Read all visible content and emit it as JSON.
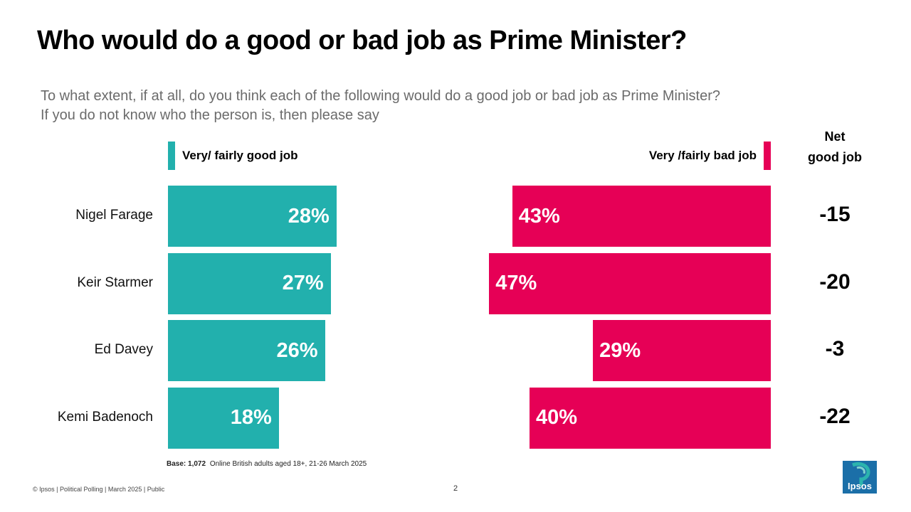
{
  "title": "Who would do a good or bad job as Prime Minister?",
  "subtitle_line1": "To what extent, if at all, do you think each of the following would do a good job or bad job as Prime Minister?",
  "subtitle_line2": "If you do not know who the person is, then please say",
  "colors": {
    "good": "#22b0ad",
    "bad": "#e60056"
  },
  "chart_data": {
    "type": "bar",
    "orientation": "horizontal",
    "title": "Who would do a good or bad job as Prime Minister?",
    "categories": [
      "Nigel Farage",
      "Keir Starmer",
      "Ed Davey",
      "Kemi Badenoch"
    ],
    "series": [
      {
        "name": "Very/ fairly good job",
        "values": [
          28,
          27,
          26,
          18
        ],
        "labels": [
          "28%",
          "27%",
          "26%",
          "18%"
        ]
      },
      {
        "name": "Very /fairly bad job",
        "values": [
          43,
          47,
          29,
          40
        ],
        "labels": [
          "43%",
          "47%",
          "29%",
          "40%"
        ]
      }
    ],
    "net": {
      "header_line1": "Net",
      "header_line2": "good job",
      "values": [
        "-15",
        "-20",
        "-3",
        "-22"
      ]
    },
    "unit": "%",
    "xlim": [
      0,
      50
    ]
  },
  "base": {
    "label": "Base: 1,072",
    "text": "Online British adults aged 18+,  21-26 March 2025"
  },
  "footer": "© Ipsos | Political Polling | March 2025 | Public",
  "page_number": "2",
  "logo": {
    "text": "Ipsos",
    "icon": "ipsos-logo-icon"
  }
}
